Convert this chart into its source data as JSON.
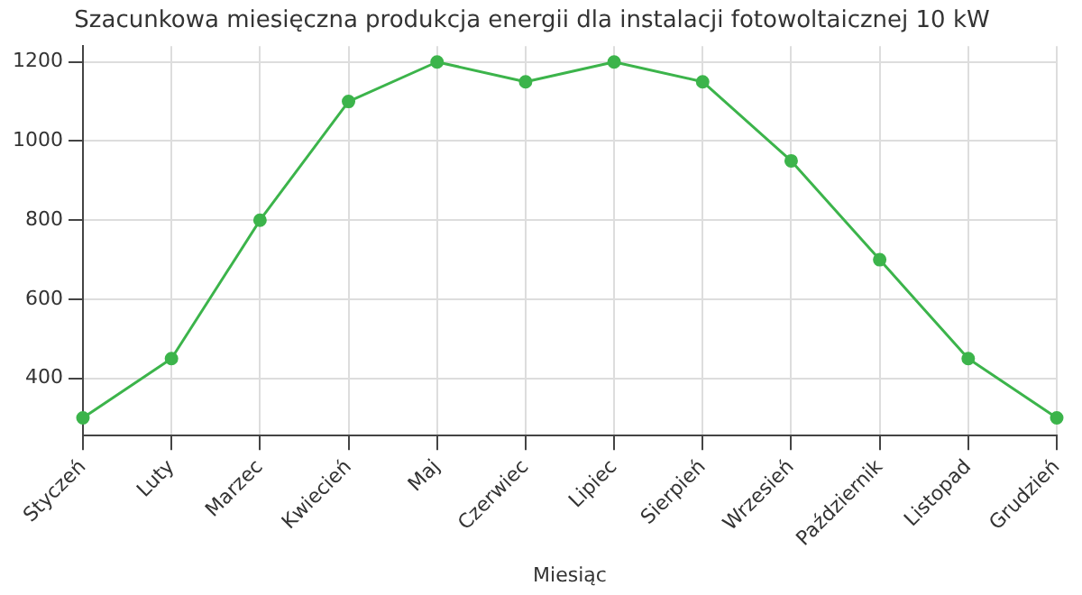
{
  "chart_data": {
    "type": "line",
    "title": "Szacunkowa miesięczna produkcja energii dla instalacji fotowoltaicznej 10 kW",
    "xlabel": "Miesiąc",
    "categories": [
      "Styczeń",
      "Luty",
      "Marzec",
      "Kwiecień",
      "Maj",
      "Czerwiec",
      "Lipiec",
      "Sierpień",
      "Wrzesień",
      "Październik",
      "Listopad",
      "Grudzień"
    ],
    "series": [
      {
        "color": "#3cb44b",
        "values": [
          300,
          450,
          800,
          1100,
          1200,
          1150,
          1200,
          1150,
          950,
          700,
          450,
          300
        ]
      }
    ],
    "ylim": [
      255,
      1240
    ],
    "yticks": [
      400,
      600,
      800,
      1000,
      1200
    ],
    "grid": true,
    "marker": "circle",
    "line_style": "solid",
    "legend": false
  }
}
